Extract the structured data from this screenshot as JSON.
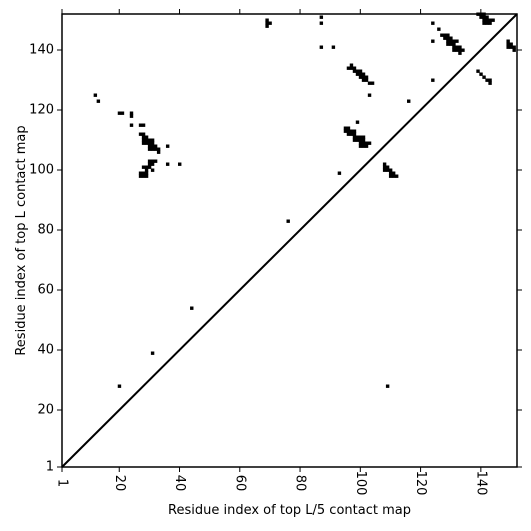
{
  "chart_data": {
    "type": "scatter",
    "xlabel": "Residue index of top L/5 contact map",
    "ylabel": "Residue index of top L contact map",
    "xlim": [
      1,
      152
    ],
    "ylim": [
      1,
      152
    ],
    "x_ticks": [
      1,
      20,
      40,
      60,
      80,
      100,
      120,
      140
    ],
    "y_ticks": [
      1,
      20,
      40,
      60,
      80,
      100,
      120,
      140
    ],
    "x_tick_labels": [
      "1",
      "20",
      "40",
      "60",
      "80",
      "100",
      "120",
      "140"
    ],
    "y_tick_labels": [
      "1",
      "20",
      "40",
      "60",
      "80",
      "100",
      "120",
      "140"
    ],
    "diagonal": true,
    "marker_color": "#000000",
    "upper_points": [
      [
        69,
        150
      ],
      [
        69,
        149
      ],
      [
        69,
        148
      ],
      [
        70,
        149
      ],
      [
        87,
        151
      ],
      [
        87,
        149
      ],
      [
        87,
        141
      ],
      [
        91,
        141
      ],
      [
        96,
        134
      ],
      [
        97,
        135
      ],
      [
        97,
        134
      ],
      [
        98,
        134
      ],
      [
        98,
        133
      ],
      [
        99,
        133
      ],
      [
        99,
        132
      ],
      [
        100,
        133
      ],
      [
        100,
        132
      ],
      [
        100,
        131
      ],
      [
        101,
        132
      ],
      [
        101,
        131
      ],
      [
        101,
        130
      ],
      [
        102,
        131
      ],
      [
        102,
        130
      ],
      [
        103,
        129
      ],
      [
        104,
        129
      ],
      [
        103,
        125
      ],
      [
        116,
        123
      ],
      [
        124,
        149
      ],
      [
        124,
        143
      ],
      [
        124,
        130
      ],
      [
        126,
        147
      ],
      [
        127,
        145
      ],
      [
        128,
        145
      ],
      [
        128,
        144
      ],
      [
        129,
        145
      ],
      [
        129,
        144
      ],
      [
        129,
        143
      ],
      [
        129,
        142
      ],
      [
        130,
        144
      ],
      [
        130,
        143
      ],
      [
        130,
        142
      ],
      [
        131,
        143
      ],
      [
        131,
        142
      ],
      [
        131,
        141
      ],
      [
        131,
        140
      ],
      [
        132,
        143
      ],
      [
        132,
        141
      ],
      [
        132,
        140
      ],
      [
        133,
        141
      ],
      [
        133,
        140
      ],
      [
        133,
        139
      ],
      [
        134,
        140
      ],
      [
        139,
        133
      ],
      [
        139,
        152
      ],
      [
        140,
        152
      ],
      [
        140,
        151
      ],
      [
        140,
        132
      ],
      [
        141,
        152
      ],
      [
        141,
        151
      ],
      [
        141,
        150
      ],
      [
        141,
        149
      ],
      [
        141,
        131
      ],
      [
        142,
        151
      ],
      [
        142,
        150
      ],
      [
        142,
        149
      ],
      [
        142,
        130
      ],
      [
        143,
        150
      ],
      [
        143,
        149
      ],
      [
        143,
        130
      ],
      [
        143,
        129
      ],
      [
        144,
        150
      ],
      [
        149,
        143
      ],
      [
        149,
        142
      ],
      [
        149,
        141
      ],
      [
        150,
        142
      ],
      [
        150,
        141
      ],
      [
        151,
        141
      ],
      [
        151,
        140
      ]
    ],
    "lower_points": [
      [
        12,
        125
      ],
      [
        13,
        123
      ],
      [
        20,
        119
      ],
      [
        21,
        119
      ],
      [
        24,
        119
      ],
      [
        24,
        118
      ],
      [
        24,
        115
      ],
      [
        27,
        115
      ],
      [
        28,
        115
      ],
      [
        27,
        112
      ],
      [
        28,
        112
      ],
      [
        28,
        111
      ],
      [
        28,
        110
      ],
      [
        28,
        109
      ],
      [
        29,
        111
      ],
      [
        29,
        110
      ],
      [
        29,
        109
      ],
      [
        30,
        110
      ],
      [
        30,
        109
      ],
      [
        30,
        108
      ],
      [
        30,
        107
      ],
      [
        31,
        110
      ],
      [
        31,
        109
      ],
      [
        31,
        108
      ],
      [
        31,
        107
      ],
      [
        32,
        108
      ],
      [
        32,
        107
      ],
      [
        33,
        107
      ],
      [
        33,
        106
      ],
      [
        36,
        108
      ],
      [
        27,
        99
      ],
      [
        27,
        98
      ],
      [
        28,
        99
      ],
      [
        28,
        98
      ],
      [
        28,
        101
      ],
      [
        29,
        101
      ],
      [
        29,
        100
      ],
      [
        29,
        99
      ],
      [
        29,
        98
      ],
      [
        30,
        103
      ],
      [
        30,
        102
      ],
      [
        30,
        101
      ],
      [
        31,
        103
      ],
      [
        31,
        102
      ],
      [
        31,
        100
      ],
      [
        32,
        103
      ],
      [
        36,
        102
      ],
      [
        40,
        102
      ],
      [
        44,
        54
      ],
      [
        31,
        39
      ],
      [
        20,
        28
      ],
      [
        76,
        83
      ],
      [
        93,
        99
      ],
      [
        95,
        114
      ],
      [
        95,
        113
      ],
      [
        96,
        114
      ],
      [
        96,
        113
      ],
      [
        96,
        112
      ],
      [
        97,
        113
      ],
      [
        97,
        112
      ],
      [
        98,
        113
      ],
      [
        98,
        112
      ],
      [
        98,
        111
      ],
      [
        98,
        110
      ],
      [
        99,
        116
      ],
      [
        99,
        111
      ],
      [
        99,
        110
      ],
      [
        100,
        111
      ],
      [
        100,
        110
      ],
      [
        100,
        109
      ],
      [
        100,
        108
      ],
      [
        101,
        111
      ],
      [
        101,
        110
      ],
      [
        101,
        109
      ],
      [
        101,
        108
      ],
      [
        102,
        109
      ],
      [
        102,
        108
      ],
      [
        103,
        109
      ],
      [
        108,
        102
      ],
      [
        108,
        101
      ],
      [
        108,
        100
      ],
      [
        109,
        101
      ],
      [
        109,
        100
      ],
      [
        110,
        100
      ],
      [
        110,
        99
      ],
      [
        110,
        98
      ],
      [
        111,
        99
      ],
      [
        111,
        98
      ],
      [
        112,
        98
      ],
      [
        109,
        28
      ]
    ]
  }
}
